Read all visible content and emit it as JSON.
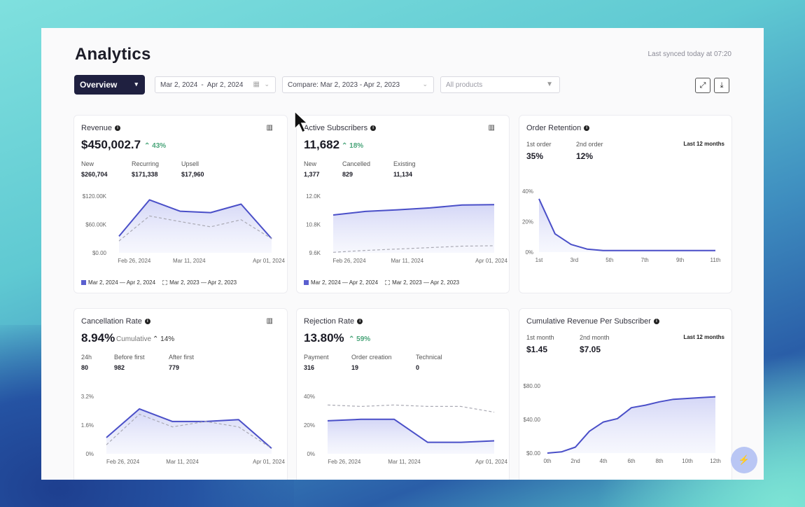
{
  "header": {
    "title": "Analytics",
    "synced": "Last synced today at 07:20"
  },
  "toolbar": {
    "view": "Overview",
    "date_start": "Mar 2, 2024",
    "date_sep": "-",
    "date_end": "Apr 2, 2024",
    "compare": "Compare: Mar 2, 2023 - Apr 2, 2023",
    "products_placeholder": "All products"
  },
  "legend": {
    "current": "Mar 2, 2024 — Apr 2, 2024",
    "previous": "Mar 2, 2023 — Apr 2, 2023"
  },
  "cards": {
    "revenue": {
      "title": "Revenue",
      "value": "$450,002.7",
      "delta": "⌃ 43%",
      "metrics": [
        {
          "label": "New",
          "value": "$260,704"
        },
        {
          "label": "Recurring",
          "value": "$171,338"
        },
        {
          "label": "Upsell",
          "value": "$17,960"
        }
      ]
    },
    "subscribers": {
      "title": "Active Subscribers",
      "value": "11,682",
      "delta": "⌃ 18%",
      "metrics": [
        {
          "label": "New",
          "value": "1,377"
        },
        {
          "label": "Cancelled",
          "value": "829"
        },
        {
          "label": "Existing",
          "value": "11,134"
        }
      ]
    },
    "retention": {
      "title": "Order Retention",
      "period": "Last 12 months",
      "metrics": [
        {
          "label": "1st order",
          "value": "35%"
        },
        {
          "label": "2nd order",
          "value": "12%"
        }
      ]
    },
    "cancellation": {
      "title": "Cancellation Rate",
      "value": "8.94%",
      "cumulative_label": "Cumulative",
      "cumulative": "⌃ 14%",
      "metrics": [
        {
          "label": "24h",
          "value": "80"
        },
        {
          "label": "Before first",
          "value": "982"
        },
        {
          "label": "After first",
          "value": "779"
        }
      ]
    },
    "rejection": {
      "title": "Rejection Rate",
      "value": "13.80%",
      "delta": "⌃ 59%",
      "metrics": [
        {
          "label": "Payment",
          "value": "316"
        },
        {
          "label": "Order creation",
          "value": "19"
        },
        {
          "label": "Technical",
          "value": "0"
        }
      ]
    },
    "cumulative": {
      "title": "Cumulative Revenue Per Subscriber",
      "period": "Last 12 months",
      "metrics": [
        {
          "label": "1st month",
          "value": "$1.45"
        },
        {
          "label": "2nd month",
          "value": "$7.05"
        }
      ]
    }
  },
  "chart_data": [
    {
      "type": "area",
      "id": "revenue",
      "x": [
        "Feb 26, 2024",
        "",
        "Mar 11, 2024",
        "",
        "",
        "Apr 01, 2024"
      ],
      "xticks": [
        "Feb 26, 2024",
        "Mar 11, 2024",
        "Apr 01, 2024"
      ],
      "yticks": [
        "$0.00",
        "$60.00K",
        "$120.00K"
      ],
      "ylim": [
        0,
        120000
      ],
      "series": [
        {
          "name": "Mar 2, 2024 — Apr 2, 2024",
          "values": [
            35000,
            112000,
            88000,
            85000,
            103000,
            30000
          ]
        },
        {
          "name": "Mar 2, 2023 — Apr 2, 2023",
          "values": [
            25000,
            78000,
            66000,
            55000,
            70000,
            30000
          ]
        }
      ]
    },
    {
      "type": "area",
      "id": "subscribers",
      "xticks": [
        "Feb 26, 2024",
        "Mar 11, 2024",
        "Apr 01, 2024"
      ],
      "yticks": [
        "9.6K",
        "10.8K",
        "12.0K"
      ],
      "ylim": [
        9600,
        12000
      ],
      "series": [
        {
          "name": "Mar 2, 2024 — Apr 2, 2024",
          "values": [
            11200,
            11350,
            11420,
            11500,
            11620,
            11640
          ]
        },
        {
          "name": "Mar 2, 2023 — Apr 2, 2023",
          "values": [
            9620,
            9700,
            9760,
            9820,
            9880,
            9900
          ]
        }
      ]
    },
    {
      "type": "area",
      "id": "retention",
      "xticks": [
        "1st",
        "3rd",
        "5th",
        "7th",
        "9th",
        "11th"
      ],
      "yticks": [
        "0%",
        "20%",
        "40%"
      ],
      "ylim": [
        0,
        40
      ],
      "series": [
        {
          "name": "Order Retention",
          "values": [
            35,
            12,
            5,
            2,
            1,
            1,
            1,
            1,
            1,
            1,
            1,
            1
          ]
        }
      ]
    },
    {
      "type": "area",
      "id": "cancellation",
      "xticks": [
        "Feb 26, 2024",
        "Mar 11, 2024",
        "Apr 01, 2024"
      ],
      "yticks": [
        "0%",
        "1.6%",
        "3.2%"
      ],
      "ylim": [
        0,
        3.2
      ],
      "series": [
        {
          "name": "Mar 2, 2024 — Apr 2, 2024",
          "values": [
            0.9,
            2.5,
            1.8,
            1.8,
            1.9,
            0.3
          ]
        },
        {
          "name": "Mar 2, 2023 — Apr 2, 2023",
          "values": [
            0.5,
            2.2,
            1.5,
            1.8,
            1.5,
            0.3
          ]
        }
      ]
    },
    {
      "type": "area",
      "id": "rejection",
      "xticks": [
        "Feb 26, 2024",
        "Mar 11, 2024",
        "Apr 01, 2024"
      ],
      "yticks": [
        "0%",
        "20%",
        "40%"
      ],
      "ylim": [
        0,
        40
      ],
      "series": [
        {
          "name": "Mar 2, 2024 — Apr 2, 2024",
          "values": [
            23,
            24,
            24,
            8,
            8,
            9
          ]
        },
        {
          "name": "Mar 2, 2023 — Apr 2, 2023",
          "values": [
            34,
            33,
            34,
            33,
            33,
            29
          ]
        }
      ]
    },
    {
      "type": "area",
      "id": "cumulative",
      "xticks": [
        "0th",
        "2nd",
        "4th",
        "6th",
        "8th",
        "10th",
        "12th"
      ],
      "yticks": [
        "$0.00",
        "$40.00",
        "$80.00"
      ],
      "ylim": [
        0,
        80
      ],
      "series": [
        {
          "name": "Cumulative Revenue Per Subscriber",
          "values": [
            0,
            1.45,
            7.05,
            26,
            37,
            41,
            54,
            57,
            61,
            64,
            65,
            66,
            67
          ]
        }
      ]
    }
  ]
}
